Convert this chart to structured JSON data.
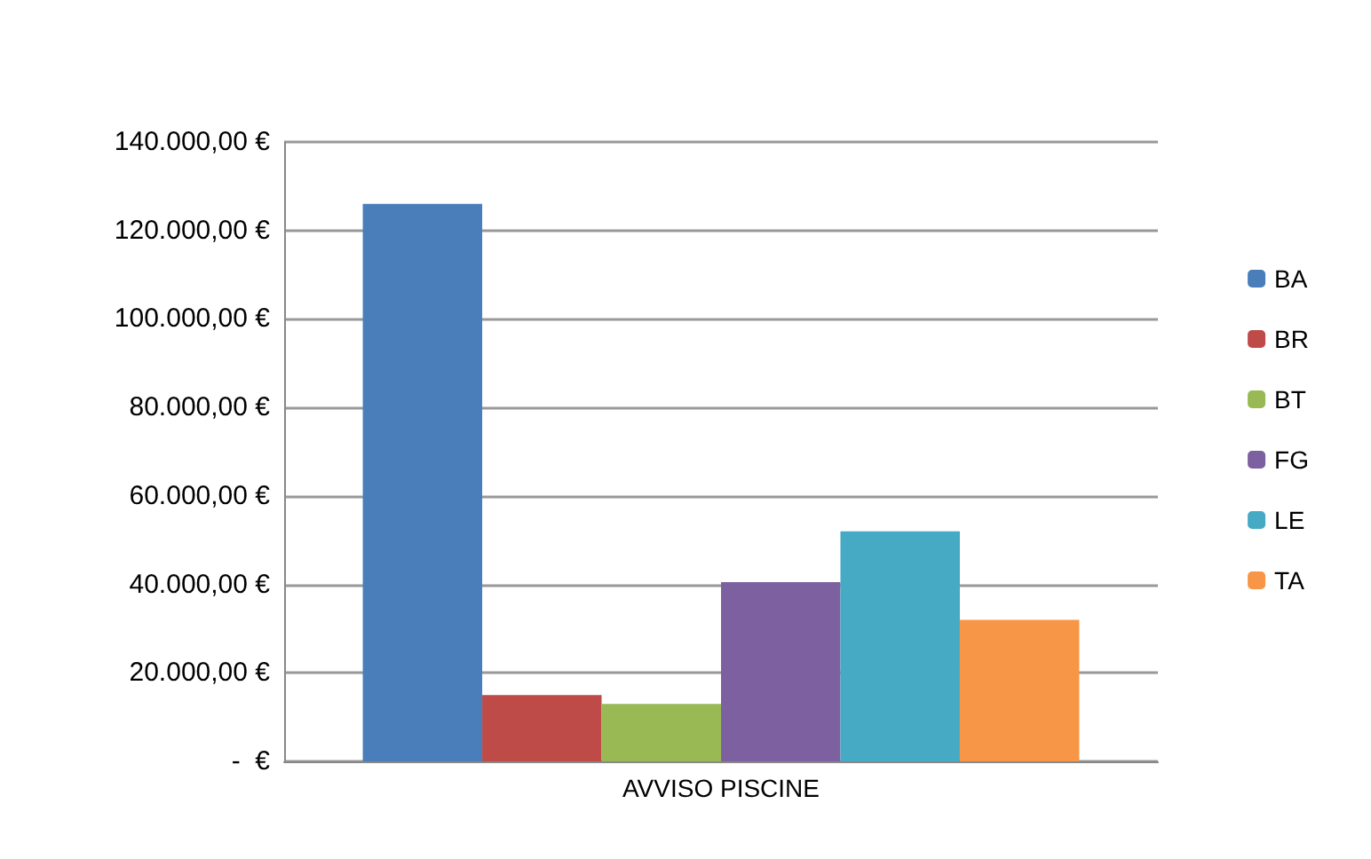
{
  "chart_data": {
    "type": "bar",
    "categories": [
      "AVVISO PISCINE"
    ],
    "series": [
      {
        "name": "BA",
        "color": "#4a7ebb",
        "values": [
          126000
        ]
      },
      {
        "name": "BR",
        "color": "#be4b48",
        "values": [
          15000
        ]
      },
      {
        "name": "BT",
        "color": "#98b954",
        "values": [
          13000
        ]
      },
      {
        "name": "FG",
        "color": "#7d60a0",
        "values": [
          40500
        ]
      },
      {
        "name": "LE",
        "color": "#46aac5",
        "values": [
          52000
        ]
      },
      {
        "name": "TA",
        "color": "#f79646",
        "values": [
          32000
        ]
      }
    ],
    "ylim": [
      0,
      140000
    ],
    "yticks": [
      {
        "value": 0,
        "label": "-  €"
      },
      {
        "value": 20000,
        "label": "20.000,00 €"
      },
      {
        "value": 40000,
        "label": "40.000,00 €"
      },
      {
        "value": 60000,
        "label": "60.000,00 €"
      },
      {
        "value": 80000,
        "label": "80.000,00 €"
      },
      {
        "value": 100000,
        "label": "100.000,00 €"
      },
      {
        "value": 120000,
        "label": "120.000,00 €"
      },
      {
        "value": 140000,
        "label": "140.000,00 €"
      }
    ],
    "grid": "y",
    "legend": "right"
  }
}
